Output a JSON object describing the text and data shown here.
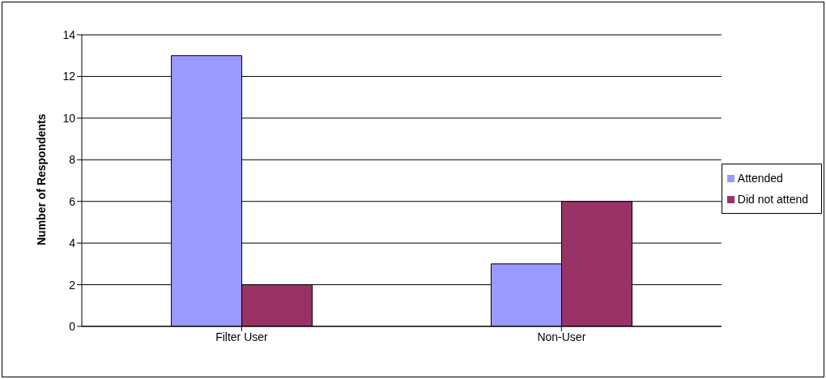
{
  "chart_data": {
    "type": "bar",
    "ylabel": "Number of Respondents",
    "categories": [
      "Filter User",
      "Non-User"
    ],
    "series": [
      {
        "name": "Attended",
        "color": "#9999ff",
        "values": [
          13,
          3
        ]
      },
      {
        "name": "Did not attend",
        "color": "#993366",
        "values": [
          2,
          6
        ]
      }
    ],
    "ylim": [
      0,
      14
    ],
    "yticks": [
      0,
      2,
      4,
      6,
      8,
      10,
      12,
      14
    ],
    "grid": "y",
    "legend": "right"
  }
}
